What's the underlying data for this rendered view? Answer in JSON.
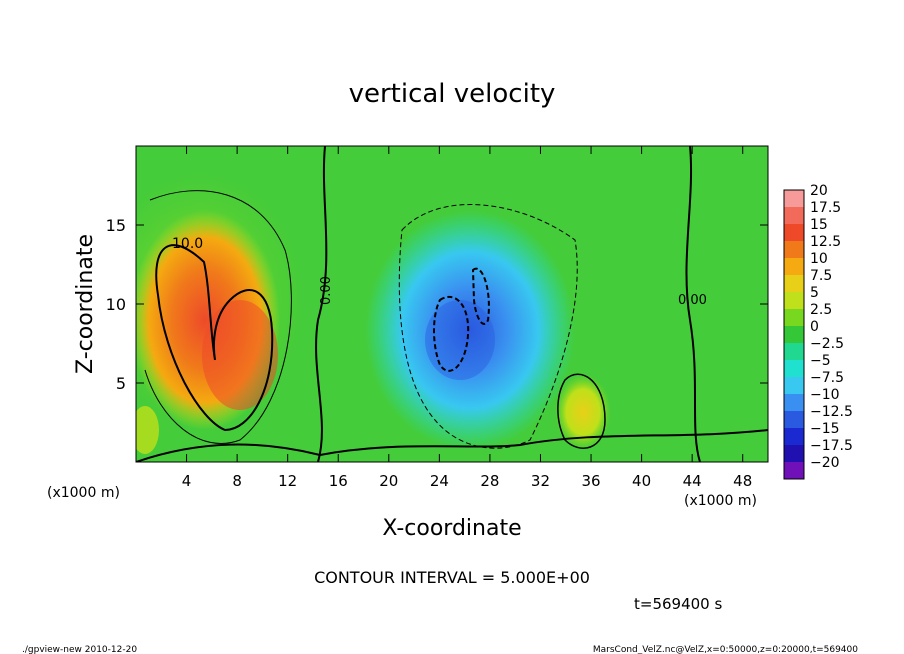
{
  "chart_data": {
    "type": "heatmap",
    "title": "vertical velocity",
    "xlabel": "X-coordinate",
    "ylabel": "Z-coordinate",
    "x_unit": "(x1000 m)",
    "xlim": [
      0,
      50
    ],
    "ylim": [
      0,
      20
    ],
    "x_ticks": [
      4,
      8,
      12,
      16,
      20,
      24,
      28,
      32,
      36,
      40,
      44,
      48
    ],
    "y_ticks": [
      5,
      10,
      15
    ],
    "colorbar": {
      "levels": [
        "20",
        "17.5",
        "15",
        "12.5",
        "10",
        "7.5",
        "5",
        "2.5",
        "0",
        "−2.5",
        "−5",
        "−7.5",
        "−10",
        "−12.5",
        "−15",
        "−17.5",
        "−20"
      ],
      "colors": [
        "#f79a9a",
        "#f26a5a",
        "#ee4a2a",
        "#f07a1a",
        "#f4aa10",
        "#e8d018",
        "#bfe01a",
        "#78d820",
        "#34c838",
        "#20d890",
        "#20e0d0",
        "#38c8f0",
        "#3a90f0",
        "#2a5ae0",
        "#1a2ad0",
        "#2010b0",
        "#7010b8"
      ]
    },
    "contour_labels": [
      "10.0",
      "0.00",
      "0.00"
    ],
    "contour_interval": "CONTOUR INTERVAL = 5.000E+00",
    "time": "t=569400 s",
    "features": [
      {
        "kind": "updraft",
        "x": 7,
        "z": 9,
        "max": 14
      },
      {
        "kind": "downdraft",
        "x": 26,
        "z": 8,
        "min": -11
      },
      {
        "kind": "updraft",
        "x": 35,
        "z": 3,
        "max": 8
      }
    ]
  },
  "footer": {
    "left": "./gpview-new   2010-12-20",
    "right": "MarsCond_VelZ.nc@VelZ,x=0:50000,z=0:20000,t=569400"
  }
}
